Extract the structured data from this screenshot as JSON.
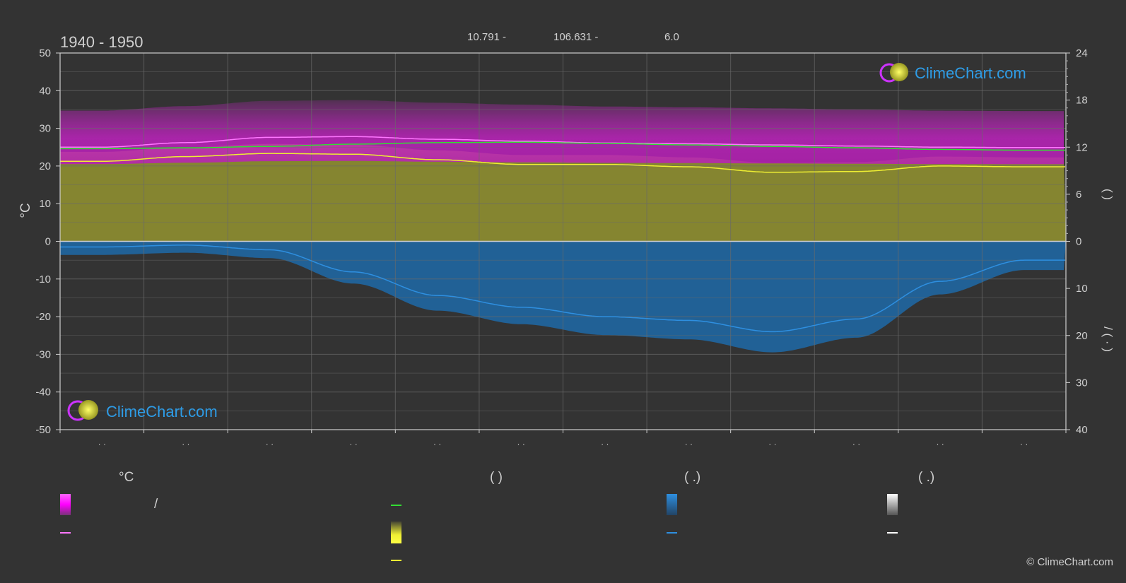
{
  "chart_data": {
    "type": "area",
    "title": "1940 - 1950",
    "header_values": [
      "10.791 -",
      "106.631 -",
      "6.0"
    ],
    "y_left": {
      "label": "°C",
      "ylim": [
        -50,
        50
      ],
      "ticks": [
        50,
        40,
        30,
        20,
        10,
        0,
        -10,
        -20,
        -30,
        -40,
        -50
      ]
    },
    "y_right_top": {
      "label": "(   )",
      "ylim": [
        0,
        24
      ],
      "ticks": [
        24,
        18,
        12,
        6,
        0
      ]
    },
    "y_right_bottom": {
      "label": "/   (  ·  )",
      "ylim": [
        0,
        40
      ],
      "ticks": [
        0,
        10,
        20,
        30,
        40
      ]
    },
    "months": 12,
    "x_tick_labels": [
      "· ·",
      "· ·",
      "· ·",
      "· ·",
      "· ·",
      "· ·",
      "· ·",
      "· ·",
      "· ·",
      "· ·",
      "· ·",
      "· ·"
    ],
    "series": [
      {
        "key": "max_temp",
        "color": "#ff77ff",
        "values": [
          25.0,
          26.2,
          27.6,
          27.8,
          27.1,
          26.6,
          26.1,
          25.9,
          25.6,
          25.3,
          25.0,
          24.9
        ]
      },
      {
        "key": "mean_temp",
        "color": "#33dd33",
        "values": [
          24.6,
          24.8,
          25.2,
          25.8,
          26.2,
          26.3,
          26.0,
          25.6,
          25.2,
          24.8,
          24.4,
          24.2
        ]
      },
      {
        "key": "daylight_hours",
        "color": "#eeee33",
        "values": [
          10.2,
          10.8,
          11.2,
          11.1,
          10.4,
          9.8,
          9.8,
          9.5,
          8.8,
          8.9,
          9.6,
          9.5
        ]
      },
      {
        "key": "precip_mm",
        "color": "#2e8fe0",
        "values": [
          1.2,
          0.8,
          1.8,
          6.5,
          11.5,
          14.0,
          16.0,
          16.8,
          19.2,
          16.5,
          8.5,
          4.0
        ]
      }
    ],
    "temp_band_range": [
      20.5,
      35.0
    ],
    "grid": true
  },
  "logo": {
    "text": "ClimeChart.com"
  },
  "legend": {
    "headers": [
      "°C",
      "(          )",
      "(   .)",
      "(   .)"
    ],
    "slash": "/"
  },
  "copyright": "© ClimeChart.com",
  "colors": {
    "background": "#333333",
    "band_magenta": "#cc22cc",
    "band_yellow": "#8a8a30",
    "band_blue": "#1f6aa8",
    "logo_blue": "#2e9ce6",
    "grid": "#5a5a5a"
  }
}
